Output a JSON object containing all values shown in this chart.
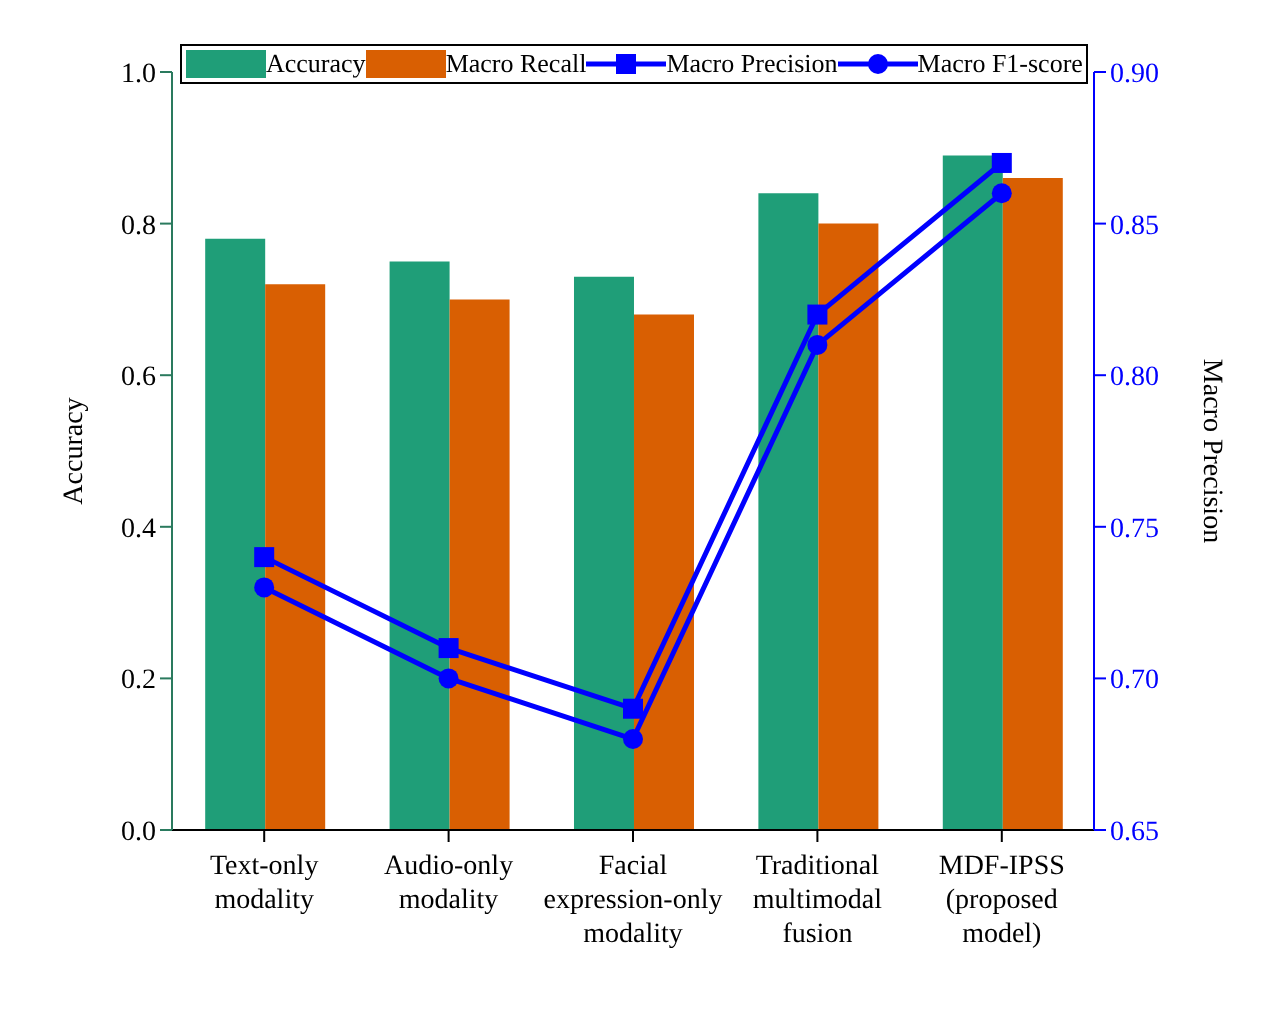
{
  "chart_data": {
    "type": "bar",
    "categories": [
      "Text-only\nmodality",
      "Audio-only\nmodality",
      "Facial\nexpression-only\nmodality",
      "Traditional\nmultimodal\nfusion",
      "MDF-IPSS\n(proposed\nmodel)"
    ],
    "series": [
      {
        "name": "Accuracy",
        "color": "#1f9e78",
        "values": [
          0.78,
          0.75,
          0.73,
          0.84,
          0.89
        ]
      },
      {
        "name": "Macro Recall",
        "color": "#d95f02",
        "values": [
          0.72,
          0.7,
          0.68,
          0.8,
          0.86
        ]
      },
      {
        "name": "Macro Precision",
        "type": "line",
        "axis": "y2",
        "marker": "square",
        "color": "#0000ff",
        "values": [
          0.74,
          0.71,
          0.69,
          0.82,
          0.87
        ]
      },
      {
        "name": "Macro F1-score",
        "type": "line",
        "axis": "y2",
        "marker": "circle",
        "color": "#0000ff",
        "values": [
          0.73,
          0.7,
          0.68,
          0.81,
          0.86
        ]
      }
    ],
    "ylabel": "Accuracy",
    "y2label": "Macro Precision",
    "ylim": [
      0,
      1
    ],
    "yticks": [
      {
        "value": 0,
        "label": "0.0"
      },
      0.2,
      0.4,
      0.6,
      0.8,
      {
        "value": 1,
        "label": "1.0"
      }
    ],
    "y2lim": [
      0.65,
      0.9
    ],
    "y2ticks": [
      {
        "value": 0.65,
        "label": "0.65"
      },
      {
        "value": 0.7,
        "label": "0.70"
      },
      {
        "value": 0.75,
        "label": "0.75"
      },
      {
        "value": 0.8,
        "label": "0.80"
      },
      {
        "value": 0.85,
        "label": "0.85"
      },
      {
        "value": 0.9,
        "label": "0.90"
      }
    ],
    "legend": "top",
    "grid": false
  }
}
